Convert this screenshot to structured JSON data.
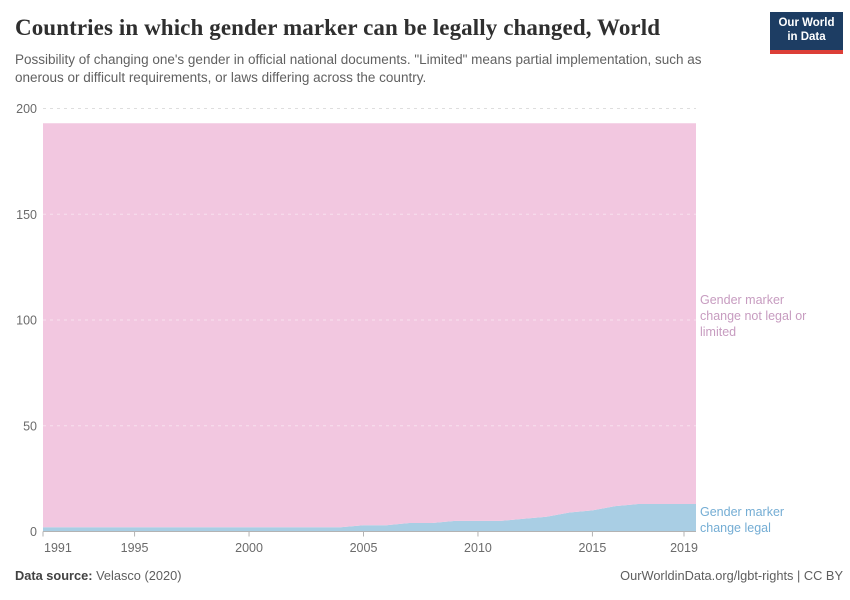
{
  "header": {
    "title": "Countries in which gender marker can be legally changed, World",
    "subtitle": "Possibility of changing one's gender in official national documents. \"Limited\" means partial implementation, such as onerous or difficult requirements, or laws differing across the country.",
    "logo": {
      "line1": "Our World",
      "line2": "in Data",
      "bg_color": "#1d3d63",
      "bar_color": "#dc3e37"
    }
  },
  "chart_data": {
    "type": "area",
    "stacked": true,
    "title": "Countries in which gender marker can be legally changed, World",
    "xlabel": "",
    "ylabel": "",
    "x": [
      1991,
      1992,
      1993,
      1994,
      1995,
      1996,
      1997,
      1998,
      1999,
      2000,
      2001,
      2002,
      2003,
      2004,
      2005,
      2006,
      2007,
      2008,
      2009,
      2010,
      2011,
      2012,
      2013,
      2014,
      2015,
      2016,
      2017,
      2018,
      2019
    ],
    "series": [
      {
        "id": "legal",
        "name": "Gender marker change legal",
        "color": "#a9cee4",
        "label_color": "#74add4",
        "values": [
          2,
          2,
          2,
          2,
          2,
          2,
          2,
          2,
          2,
          2,
          2,
          2,
          2,
          2,
          3,
          3,
          4,
          4,
          5,
          5,
          5,
          6,
          7,
          9,
          10,
          12,
          13,
          13,
          13
        ]
      },
      {
        "id": "not-legal",
        "name": "Gender marker change not legal or limited",
        "color": "#f2c7e0",
        "label_color": "#c79cc0",
        "values": [
          191,
          191,
          191,
          191,
          191,
          191,
          191,
          191,
          191,
          191,
          191,
          191,
          191,
          191,
          190,
          190,
          189,
          189,
          188,
          188,
          188,
          187,
          186,
          184,
          183,
          181,
          180,
          180,
          180
        ]
      }
    ],
    "total_countries": 193,
    "ylim": [
      0,
      200
    ],
    "yticks": [
      0,
      50,
      100,
      150,
      200
    ],
    "xticks": [
      1991,
      1995,
      2000,
      2005,
      2010,
      2015,
      2019
    ],
    "grid": "horizontal-dashed",
    "legend_position": "right-edge-annotations",
    "grid_color": "#dedede",
    "axis_color": "#b3b3b3"
  },
  "footer": {
    "source_label": "Data source:",
    "source_value": "Velasco (2020)",
    "right_text": "OurWorldinData.org/lgbt-rights | CC BY"
  }
}
